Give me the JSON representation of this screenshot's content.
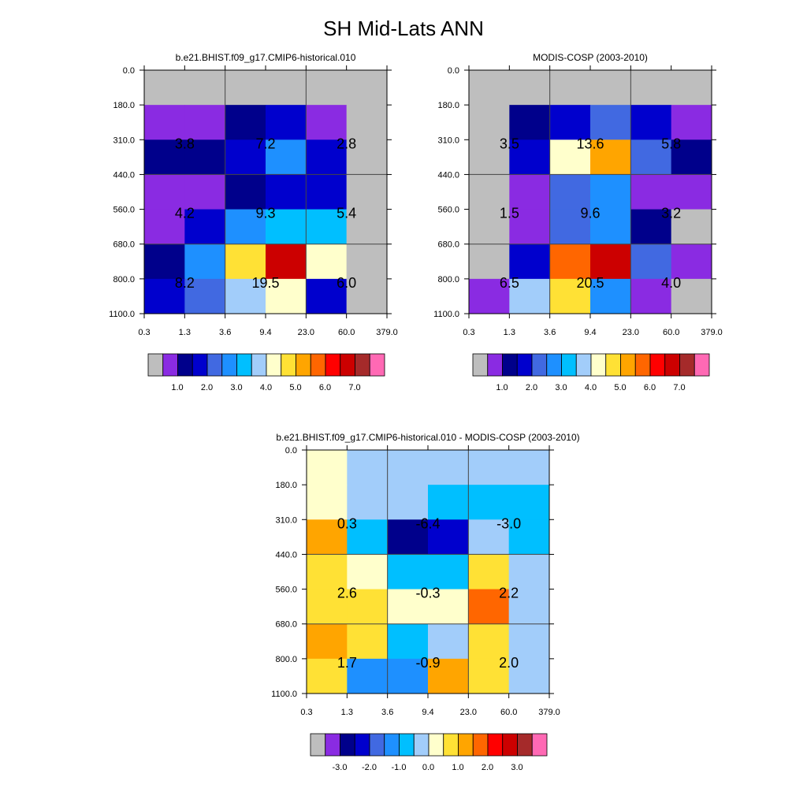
{
  "figure_title": "SH Mid-Lats ANN",
  "colors": {
    "absolute_palette": [
      "#bebebe",
      "#8a2be2",
      "#00008b",
      "#0000cd",
      "#4169e1",
      "#1e90ff",
      "#00bfff",
      "#a2cdfa",
      "#ffffcc",
      "#ffe135",
      "#ffa500",
      "#ff6600",
      "#ff0000",
      "#cc0000",
      "#a52a2a",
      "#ff69b4"
    ],
    "difference_palette": [
      "#bebebe",
      "#8a2be2",
      "#00008b",
      "#0000cd",
      "#4169e1",
      "#1e90ff",
      "#00bfff",
      "#a2cdfa",
      "#ffffcc",
      "#ffe135",
      "#ffa500",
      "#ff6600",
      "#ff0000",
      "#cc0000",
      "#a52a2a",
      "#ff69b4"
    ]
  },
  "chart_data": [
    {
      "type": "heatmap",
      "id": "model",
      "title": "b.e21.BHIST.f09_g17.CMIP6-historical.010",
      "x_ticks": [
        "0.3",
        "1.3",
        "3.6",
        "9.4",
        "23.0",
        "60.0",
        "379.0"
      ],
      "y_ticks": [
        "0.0",
        "180.0",
        "310.0",
        "440.0",
        "560.0",
        "680.0",
        "800.0",
        "1100.0"
      ],
      "cells": [
        [
          0,
          0,
          0,
          0,
          0,
          0
        ],
        [
          1,
          1,
          2,
          3,
          1,
          0
        ],
        [
          2,
          2,
          3,
          5,
          3,
          0
        ],
        [
          1,
          1,
          2,
          3,
          3,
          0
        ],
        [
          1,
          3,
          5,
          6,
          6,
          0
        ],
        [
          2,
          5,
          9,
          13,
          8,
          0
        ],
        [
          3,
          4,
          7,
          8,
          3,
          0
        ]
      ],
      "annotations": [
        {
          "row": 1,
          "col": 0,
          "text": "3.8"
        },
        {
          "row": 1,
          "col": 1,
          "text": "7.2"
        },
        {
          "row": 1,
          "col": 2,
          "text": "2.8"
        },
        {
          "row": 2,
          "col": 0,
          "text": "4.2"
        },
        {
          "row": 2,
          "col": 1,
          "text": "9.3"
        },
        {
          "row": 2,
          "col": 2,
          "text": "5.4"
        },
        {
          "row": 3,
          "col": 0,
          "text": "8.2"
        },
        {
          "row": 3,
          "col": 1,
          "text": "19.5"
        },
        {
          "row": 3,
          "col": 2,
          "text": "6.0"
        }
      ],
      "colorbar_labels": [
        "1.0",
        "2.0",
        "3.0",
        "4.0",
        "5.0",
        "6.0",
        "7.0"
      ]
    },
    {
      "type": "heatmap",
      "id": "obs",
      "title": "MODIS-COSP (2003-2010)",
      "x_ticks": [
        "0.3",
        "1.3",
        "3.6",
        "9.4",
        "23.0",
        "60.0",
        "379.0"
      ],
      "y_ticks": [
        "0.0",
        "180.0",
        "310.0",
        "440.0",
        "560.0",
        "680.0",
        "800.0",
        "1100.0"
      ],
      "cells": [
        [
          0,
          0,
          0,
          0,
          0,
          0
        ],
        [
          0,
          2,
          3,
          4,
          3,
          1
        ],
        [
          0,
          3,
          8,
          10,
          4,
          2
        ],
        [
          0,
          1,
          4,
          5,
          1,
          1
        ],
        [
          0,
          1,
          4,
          5,
          2,
          0
        ],
        [
          0,
          3,
          11,
          13,
          4,
          1
        ],
        [
          1,
          7,
          9,
          5,
          1,
          0
        ]
      ],
      "annotations": [
        {
          "row": 1,
          "col": 0,
          "text": "3.5"
        },
        {
          "row": 1,
          "col": 1,
          "text": "13.6"
        },
        {
          "row": 1,
          "col": 2,
          "text": "5.8"
        },
        {
          "row": 2,
          "col": 0,
          "text": "1.5"
        },
        {
          "row": 2,
          "col": 1,
          "text": "9.6"
        },
        {
          "row": 2,
          "col": 2,
          "text": "3.2"
        },
        {
          "row": 3,
          "col": 0,
          "text": "6.5"
        },
        {
          "row": 3,
          "col": 1,
          "text": "20.5"
        },
        {
          "row": 3,
          "col": 2,
          "text": "4.0"
        }
      ],
      "colorbar_labels": [
        "1.0",
        "2.0",
        "3.0",
        "4.0",
        "5.0",
        "6.0",
        "7.0"
      ]
    },
    {
      "type": "heatmap",
      "id": "diff",
      "title": "b.e21.BHIST.f09_g17.CMIP6-historical.010 - MODIS-COSP (2003-2010)",
      "x_ticks": [
        "0.3",
        "1.3",
        "3.6",
        "9.4",
        "23.0",
        "60.0",
        "379.0"
      ],
      "y_ticks": [
        "0.0",
        "180.0",
        "310.0",
        "440.0",
        "560.0",
        "680.0",
        "800.0",
        "1100.0"
      ],
      "cells": [
        [
          8,
          7,
          7,
          7,
          7,
          7
        ],
        [
          8,
          7,
          7,
          6,
          6,
          6
        ],
        [
          10,
          6,
          2,
          3,
          7,
          6
        ],
        [
          9,
          8,
          6,
          6,
          9,
          7
        ],
        [
          9,
          9,
          8,
          8,
          11,
          7
        ],
        [
          10,
          9,
          6,
          7,
          9,
          7
        ],
        [
          9,
          5,
          5,
          10,
          9,
          7
        ]
      ],
      "annotations": [
        {
          "row": 1,
          "col": 0,
          "text": "0.3"
        },
        {
          "row": 1,
          "col": 1,
          "text": "-6.4"
        },
        {
          "row": 1,
          "col": 2,
          "text": "-3.0"
        },
        {
          "row": 2,
          "col": 0,
          "text": "2.6"
        },
        {
          "row": 2,
          "col": 1,
          "text": "-0.3"
        },
        {
          "row": 2,
          "col": 2,
          "text": "2.2"
        },
        {
          "row": 3,
          "col": 0,
          "text": "1.7"
        },
        {
          "row": 3,
          "col": 1,
          "text": "-0.9"
        },
        {
          "row": 3,
          "col": 2,
          "text": "2.0"
        }
      ],
      "colorbar_labels": [
        "-3.0",
        "-2.0",
        "-1.0",
        "0.0",
        "1.0",
        "2.0",
        "3.0"
      ]
    }
  ]
}
